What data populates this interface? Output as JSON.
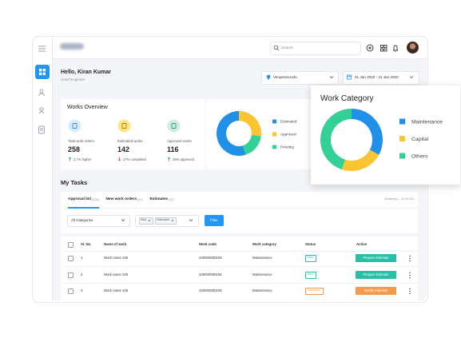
{
  "header": {
    "search_placeholder": "Search"
  },
  "greeting": {
    "title": "Hello, Kiran Kumar",
    "subtitle": "Chief Engineer"
  },
  "filters": {
    "location": "Venjaramoodu",
    "date_range": "01 Jan 2020 - 31 Jan 2020"
  },
  "works_overview": {
    "title": "Works Overview",
    "stats": [
      {
        "label": "Total work orders",
        "value": 258,
        "change": "2.7% higher",
        "trend": "up"
      },
      {
        "label": "Estimated works",
        "value": 142,
        "change": "27% completed",
        "trend": "down"
      },
      {
        "label": "Approved works",
        "value": 116,
        "change": "26% approved",
        "trend": "up"
      }
    ]
  },
  "status_chart": {
    "type": "donut",
    "series": [
      {
        "name": "Estimated",
        "color": "#2190e8",
        "value": 55
      },
      {
        "name": "Approved",
        "color": "#fbc531",
        "value": 27
      },
      {
        "name": "Pending",
        "color": "#34d196",
        "value": 18
      }
    ]
  },
  "work_category": {
    "type": "donut",
    "title": "Work Category",
    "series": [
      {
        "name": "Maintenance",
        "color": "#2190e8",
        "value": 33
      },
      {
        "name": "Capital",
        "color": "#fbc531",
        "value": 22
      },
      {
        "name": "Others",
        "color": "#34d196",
        "value": 45
      }
    ]
  },
  "tasks": {
    "title": "My Tasks",
    "tabs": [
      {
        "label": "Approval list",
        "count": "(102)"
      },
      {
        "label": "New work orders",
        "count": "(47)"
      },
      {
        "label": "Estimates",
        "count": "(47)"
      }
    ],
    "showing": "Showing 1 - 10 of 102",
    "category_select": "All Categories",
    "tags": [
      "New",
      "Estimated"
    ],
    "filter_button": "Filter",
    "table": {
      "columns": [
        "Sl. No.",
        "Name of work",
        "Work code",
        "Work category",
        "Status",
        "Action"
      ],
      "rows": [
        {
          "cells": [
            "1",
            "Work name 105",
            "100000000105",
            "Maintenance",
            "New",
            "Prepare Estimate"
          ],
          "status_color": "#26bfa8"
        },
        {
          "cells": [
            "2",
            "Work name 105",
            "100000000105",
            "Maintenance",
            "New",
            "Prepare Estimate"
          ],
          "status_color": "#26bfa8"
        },
        {
          "cells": [
            "3",
            "Work name 105",
            "100000000105",
            "Maintenance",
            "Estimated",
            "Modify Estimate"
          ],
          "status_color": "#f39a4b"
        }
      ]
    }
  }
}
